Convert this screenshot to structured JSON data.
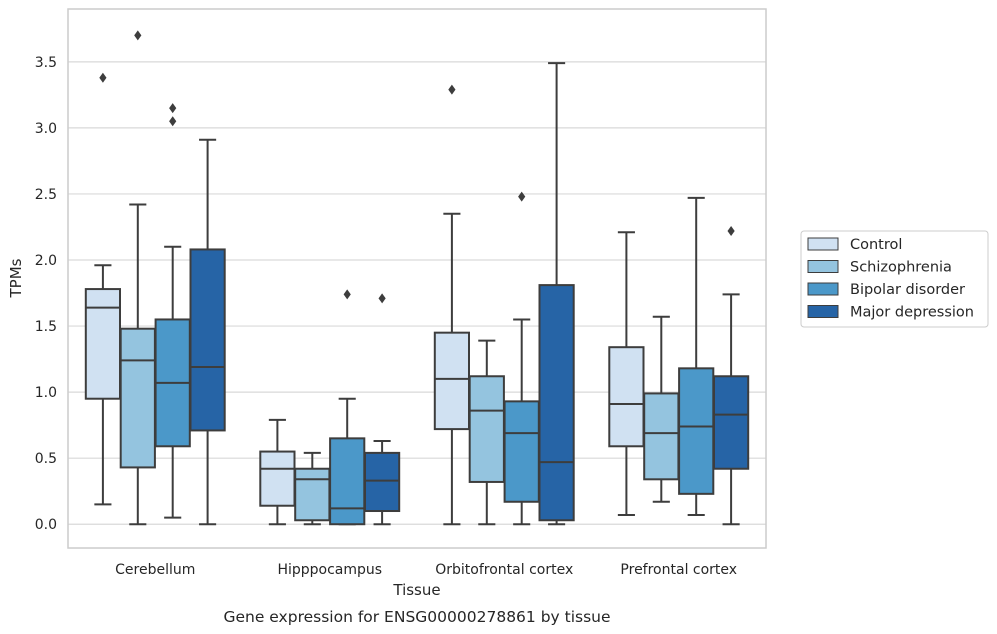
{
  "caption": "Gene expression for ENSG00000278861 by tissue",
  "chart_data": {
    "type": "box",
    "xlabel": "Tissue",
    "ylabel": "TPMs",
    "ylim": [
      -0.18,
      3.9
    ],
    "yticks": [
      "0.0",
      "0.5",
      "1.0",
      "1.5",
      "2.0",
      "2.5",
      "3.0",
      "3.5"
    ],
    "grid": "horizontal",
    "legend_position": "right",
    "categories": [
      "Cerebellum",
      "Hipppocampus",
      "Orbitofrontal cortex",
      "Prefrontal cortex"
    ],
    "series": [
      {
        "name": "Control",
        "color": "#d0e1f2",
        "boxes": [
          {
            "whislo": 0.15,
            "q1": 0.95,
            "med": 1.64,
            "q3": 1.78,
            "whishi": 1.96,
            "fliers": [
              3.38
            ]
          },
          {
            "whislo": 0.0,
            "q1": 0.14,
            "med": 0.42,
            "q3": 0.55,
            "whishi": 0.79,
            "fliers": []
          },
          {
            "whislo": 0.0,
            "q1": 0.72,
            "med": 1.1,
            "q3": 1.45,
            "whishi": 2.35,
            "fliers": [
              3.29
            ]
          },
          {
            "whislo": 0.07,
            "q1": 0.59,
            "med": 0.91,
            "q3": 1.34,
            "whishi": 2.21,
            "fliers": []
          }
        ]
      },
      {
        "name": "Schizophrenia",
        "color": "#94c4df",
        "boxes": [
          {
            "whislo": 0.0,
            "q1": 0.43,
            "med": 1.24,
            "q3": 1.48,
            "whishi": 2.42,
            "fliers": [
              3.7
            ]
          },
          {
            "whislo": 0.0,
            "q1": 0.03,
            "med": 0.34,
            "q3": 0.42,
            "whishi": 0.54,
            "fliers": []
          },
          {
            "whislo": 0.0,
            "q1": 0.32,
            "med": 0.86,
            "q3": 1.12,
            "whishi": 1.39,
            "fliers": []
          },
          {
            "whislo": 0.17,
            "q1": 0.34,
            "med": 0.69,
            "q3": 0.99,
            "whishi": 1.57,
            "fliers": []
          }
        ]
      },
      {
        "name": "Bipolar disorder",
        "color": "#4b98c9",
        "boxes": [
          {
            "whislo": 0.05,
            "q1": 0.59,
            "med": 1.07,
            "q3": 1.55,
            "whishi": 2.1,
            "fliers": [
              3.15,
              3.05
            ]
          },
          {
            "whislo": 0.0,
            "q1": 0.0,
            "med": 0.12,
            "q3": 0.65,
            "whishi": 0.95,
            "fliers": [
              1.74
            ]
          },
          {
            "whislo": 0.0,
            "q1": 0.17,
            "med": 0.69,
            "q3": 0.93,
            "whishi": 1.55,
            "fliers": [
              2.48
            ]
          },
          {
            "whislo": 0.07,
            "q1": 0.23,
            "med": 0.74,
            "q3": 1.18,
            "whishi": 2.47,
            "fliers": []
          }
        ]
      },
      {
        "name": "Major depression",
        "color": "#2664a6",
        "boxes": [
          {
            "whislo": 0.0,
            "q1": 0.71,
            "med": 1.19,
            "q3": 2.08,
            "whishi": 2.91,
            "fliers": []
          },
          {
            "whislo": 0.0,
            "q1": 0.1,
            "med": 0.33,
            "q3": 0.54,
            "whishi": 0.63,
            "fliers": [
              1.71
            ]
          },
          {
            "whislo": 0.0,
            "q1": 0.03,
            "med": 0.47,
            "q3": 1.81,
            "whishi": 3.49,
            "fliers": []
          },
          {
            "whislo": 0.0,
            "q1": 0.42,
            "med": 0.83,
            "q3": 1.12,
            "whishi": 1.74,
            "fliers": [
              2.22
            ]
          }
        ]
      }
    ]
  }
}
